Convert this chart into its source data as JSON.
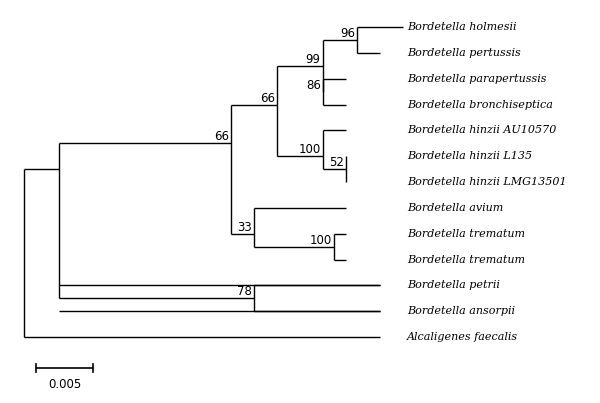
{
  "taxa": [
    "Bordetella holmesii",
    "Bordetella pertussis",
    "Bordetella parapertussis",
    "Bordetella bronchiseptica",
    "Bordetella hinzii AU10570",
    "Bordetella hinzii L135",
    "Bordetella hinzii LMG13501",
    "Bordetella avium",
    "Bordetella trematum",
    "Bordetella trematum",
    "Bordetella petrii",
    "Bordetella ansorpii",
    "Alcaligenes faecalis"
  ],
  "italic_parts": [
    [
      "Bordetella",
      " holmesii"
    ],
    [
      "Bordetella",
      " pertussis"
    ],
    [
      "Bordetella",
      " parapertussis"
    ],
    [
      "Bordetella",
      " bronchiseptica"
    ],
    [
      "Bordetella",
      " hinzii AU10570"
    ],
    [
      "Bordetella",
      " hinzii L135"
    ],
    [
      "Bordetella",
      " hinzii LMG13501"
    ],
    [
      "Bordetella",
      " avium"
    ],
    [
      "Bordetella",
      " trematum"
    ],
    [
      "Bordetella",
      " trematum"
    ],
    [
      "Bordetella",
      " petrii"
    ],
    [
      "Bordetella",
      " ansorpii"
    ],
    [
      "Alcaligenes",
      " faecalis"
    ]
  ],
  "background": "#ffffff",
  "line_color": "#000000",
  "text_color": "#000000",
  "scale_bar_value": 0.005,
  "scale_bar_label": "0.005",
  "figsize": [
    6.0,
    4.03
  ],
  "dpi": 100
}
